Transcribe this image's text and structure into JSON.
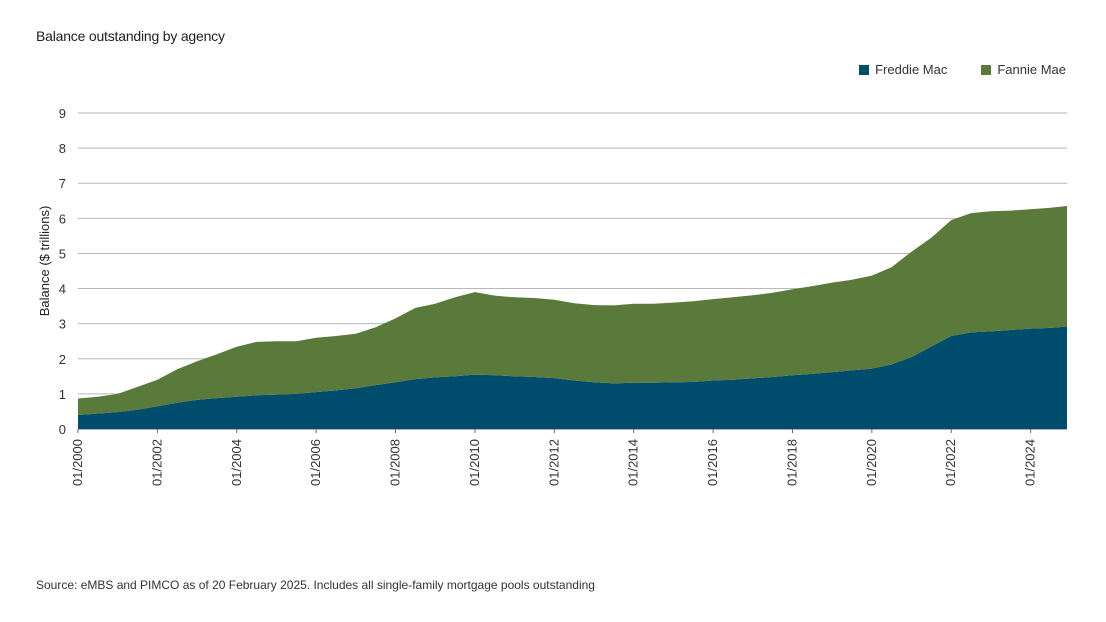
{
  "chart_data": {
    "type": "area",
    "stacked": true,
    "title": "Balance outstanding by agency",
    "ylabel": "Balance ($ trillions)",
    "xlabel": "",
    "ylim": [
      0,
      9
    ],
    "yticks": [
      "0",
      "1",
      "2",
      "3",
      "4",
      "5",
      "6",
      "7",
      "8",
      "9"
    ],
    "xticks": [
      "01/2000",
      "01/2002",
      "01/2004",
      "01/2006",
      "01/2008",
      "01/2010",
      "01/2012",
      "01/2014",
      "01/2016",
      "01/2018",
      "01/2020",
      "01/2022",
      "01/2024"
    ],
    "grid": true,
    "legend_position": "top-right",
    "x": [
      "2000-01",
      "2000-07",
      "2001-01",
      "2001-07",
      "2002-01",
      "2002-07",
      "2003-01",
      "2003-07",
      "2004-01",
      "2004-07",
      "2005-01",
      "2005-07",
      "2006-01",
      "2006-07",
      "2007-01",
      "2007-07",
      "2008-01",
      "2008-07",
      "2009-01",
      "2009-07",
      "2010-01",
      "2010-07",
      "2011-01",
      "2011-07",
      "2012-01",
      "2012-07",
      "2013-01",
      "2013-07",
      "2014-01",
      "2014-07",
      "2015-01",
      "2015-07",
      "2016-01",
      "2016-07",
      "2017-01",
      "2017-07",
      "2018-01",
      "2018-07",
      "2019-01",
      "2019-07",
      "2020-01",
      "2020-07",
      "2021-01",
      "2021-07",
      "2022-01",
      "2022-07",
      "2023-01",
      "2023-07",
      "2024-01",
      "2024-07",
      "2024-12"
    ],
    "series": [
      {
        "name": "Freddie Mac",
        "color": "#004c6d",
        "values": [
          0.4,
          0.44,
          0.48,
          0.55,
          0.65,
          0.75,
          0.83,
          0.88,
          0.92,
          0.96,
          0.98,
          1.0,
          1.05,
          1.1,
          1.16,
          1.25,
          1.33,
          1.42,
          1.47,
          1.5,
          1.55,
          1.53,
          1.5,
          1.48,
          1.45,
          1.38,
          1.33,
          1.3,
          1.32,
          1.32,
          1.33,
          1.34,
          1.38,
          1.4,
          1.44,
          1.48,
          1.53,
          1.57,
          1.62,
          1.67,
          1.72,
          1.84,
          2.05,
          2.35,
          2.65,
          2.75,
          2.78,
          2.82,
          2.86,
          2.88,
          2.92
        ]
      },
      {
        "name": "Fannie Mae",
        "color": "#5a7a3c",
        "values": [
          0.47,
          0.48,
          0.52,
          0.65,
          0.75,
          0.95,
          1.1,
          1.25,
          1.42,
          1.52,
          1.52,
          1.5,
          1.55,
          1.55,
          1.55,
          1.65,
          1.82,
          2.03,
          2.1,
          2.25,
          2.35,
          2.27,
          2.25,
          2.25,
          2.23,
          2.2,
          2.2,
          2.22,
          2.25,
          2.25,
          2.27,
          2.3,
          2.32,
          2.35,
          2.37,
          2.4,
          2.45,
          2.5,
          2.55,
          2.58,
          2.65,
          2.77,
          3.0,
          3.1,
          3.3,
          3.4,
          3.42,
          3.4,
          3.4,
          3.42,
          3.43
        ]
      }
    ]
  },
  "source_note": "Source: eMBS and PIMCO as of 20 February 2025. Includes all single-family mortgage pools outstanding"
}
